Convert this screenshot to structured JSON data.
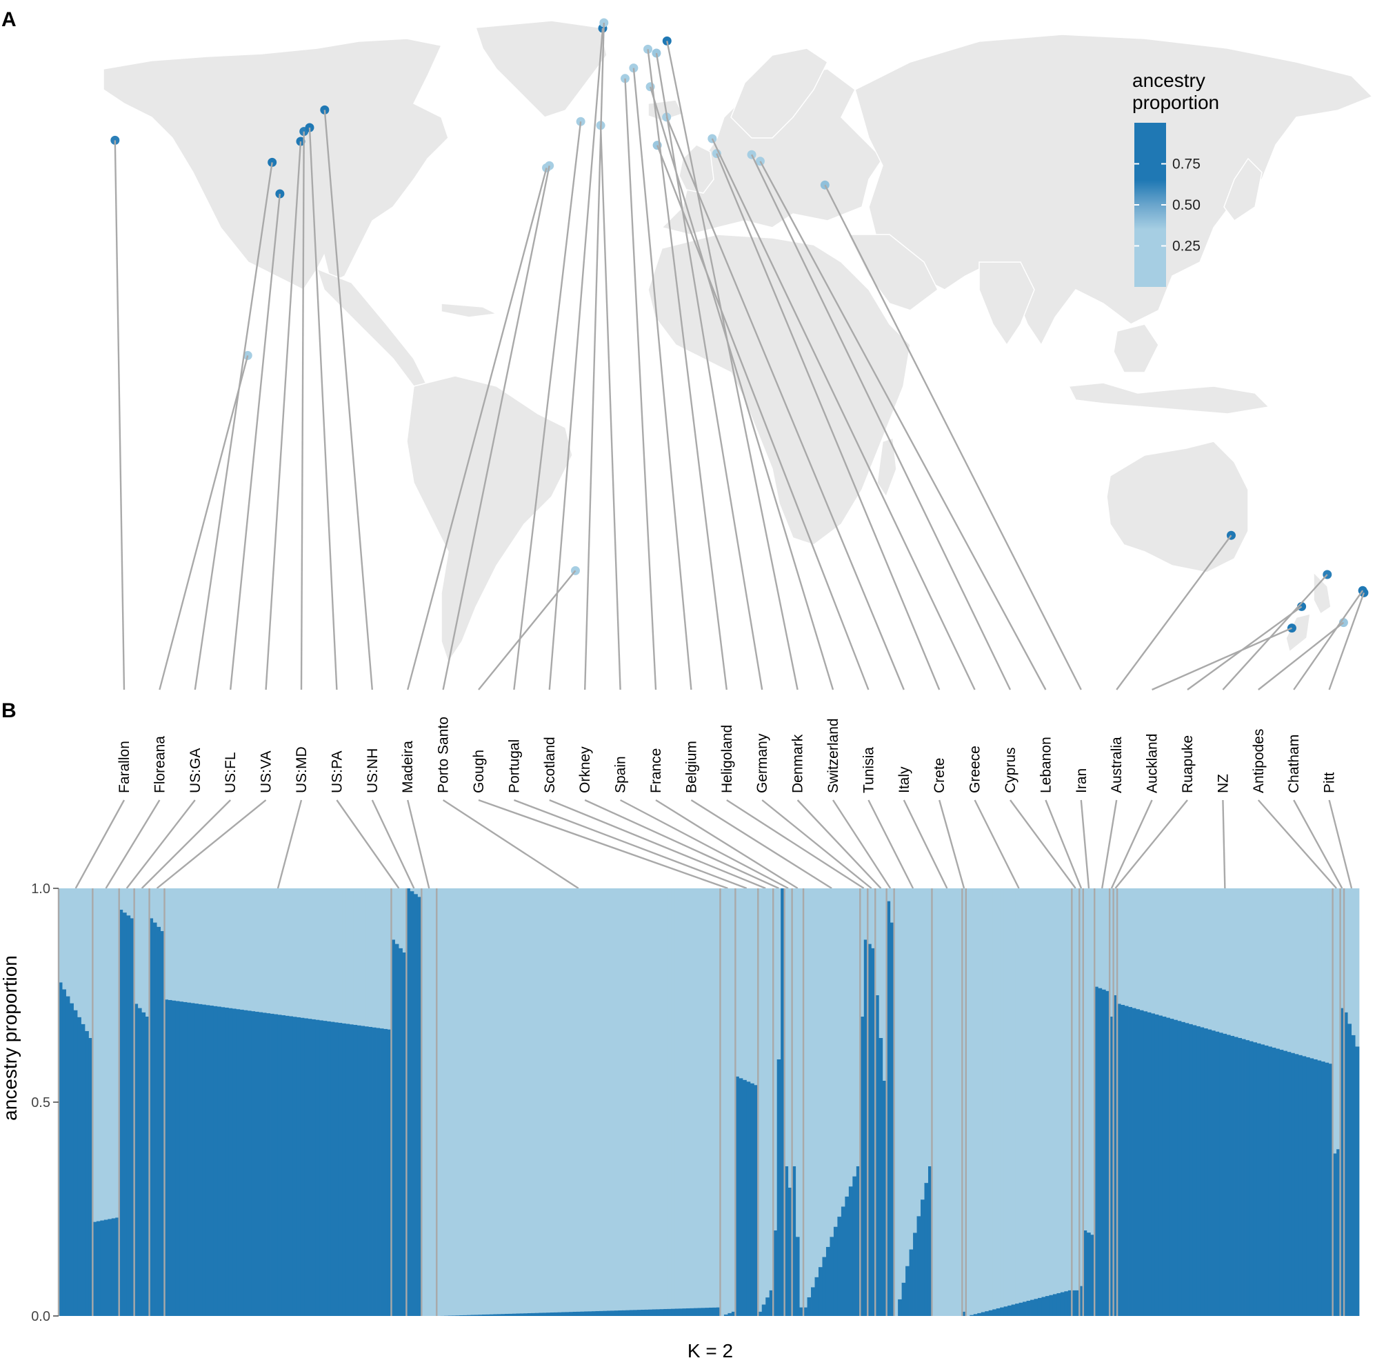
{
  "figure": {
    "panel_a_label": "A",
    "panel_b_label": "B",
    "legend": {
      "title_line1": "ancestry",
      "title_line2": "proportion",
      "ticks": [
        0.75,
        0.5,
        0.25
      ],
      "tick_labels": [
        "0.75",
        "0.50",
        "0.25"
      ],
      "color_low": "#a6cee3",
      "color_high": "#1f78b4"
    },
    "map_land_color": "#e8e8e8",
    "leader_line_color": "#a9a9a9"
  },
  "chart_data": {
    "type": "bar",
    "subtype": "stacked-admixture",
    "xlabel": "K = 2",
    "ylabel": "ancestry proportion",
    "ylim": [
      0,
      1
    ],
    "yticks": [
      0.0,
      0.5,
      1.0
    ],
    "ytick_labels": [
      "0.0",
      "0.5",
      "1.0"
    ],
    "series_colors": {
      "cluster1": "#1f78b4",
      "cluster2": "#a6cee3"
    },
    "populations": [
      {
        "name": "Farallon",
        "n": 9,
        "start": 0.78,
        "end": 0.65,
        "sample_site": {
          "lon": -123.0,
          "lat": 37.7
        },
        "site_value": 0.75
      },
      {
        "name": "Floreana",
        "n": 7,
        "start": 0.22,
        "end": 0.23,
        "sample_site": {
          "lon": -90.4,
          "lat": -1.3
        },
        "site_value": 0.2
      },
      {
        "name": "US:GA",
        "n": 4,
        "start": 0.95,
        "end": 0.93,
        "sample_site": {
          "lon": -84.4,
          "lat": 33.7
        },
        "site_value": 0.8
      },
      {
        "name": "US:FL",
        "n": 4,
        "start": 0.73,
        "end": 0.7,
        "sample_site": {
          "lon": -82.5,
          "lat": 28.0
        },
        "site_value": 0.8
      },
      {
        "name": "US:VA",
        "n": 4,
        "start": 0.93,
        "end": 0.9,
        "sample_site": {
          "lon": -77.4,
          "lat": 37.5
        },
        "site_value": 0.8
      },
      {
        "name": "US:MD",
        "n": 60,
        "start": 0.74,
        "end": 0.67,
        "sample_site": {
          "lon": -76.6,
          "lat": 39.3
        },
        "site_value": 0.75
      },
      {
        "name": "US:PA",
        "n": 4,
        "start": 0.88,
        "end": 0.85,
        "sample_site": {
          "lon": -75.2,
          "lat": 40.0
        },
        "site_value": 0.8
      },
      {
        "name": "US:NH",
        "n": 4,
        "start": 1.0,
        "end": 0.98,
        "sample_site": {
          "lon": -71.5,
          "lat": 43.2
        },
        "site_value": 0.95
      },
      {
        "name": "Madeira",
        "n": 4,
        "start": 0.0,
        "end": 0.0,
        "sample_site": {
          "lon": -17.0,
          "lat": 32.7
        },
        "site_value": 0.1
      },
      {
        "name": "Porto Santo",
        "n": 75,
        "start": 0.0,
        "end": 0.02,
        "sample_site": {
          "lon": -16.3,
          "lat": 33.1
        },
        "site_value": 0.1
      },
      {
        "name": "Gough",
        "n": 4,
        "start": 0.0,
        "end": 0.01,
        "sample_site": {
          "lon": -9.9,
          "lat": -40.3
        },
        "site_value": 0.2
      },
      {
        "name": "Portugal",
        "n": 6,
        "start": 0.56,
        "end": 0.54,
        "sample_site": {
          "lon": -8.6,
          "lat": 41.1
        },
        "site_value": 0.15
      },
      {
        "name": "Scotland",
        "n": 4,
        "start": 0.01,
        "end": 0.06,
        "sample_site": {
          "lon": -3.2,
          "lat": 58.0
        },
        "site_value": 0.8
      },
      {
        "name": "Orkney",
        "n": 3,
        "start": 0.2,
        "end": 1.0,
        "sample_site": {
          "lon": -2.9,
          "lat": 59.0
        },
        "site_value": 0.15
      },
      {
        "name": "Spain",
        "n": 2,
        "start": 0.35,
        "end": 0.3,
        "sample_site": {
          "lon": -3.7,
          "lat": 40.4
        },
        "site_value": 0.2
      },
      {
        "name": "France",
        "n": 3,
        "start": 0.35,
        "end": 0.02,
        "sample_site": {
          "lon": 2.3,
          "lat": 48.9
        },
        "site_value": 0.2
      },
      {
        "name": "Belgium",
        "n": 15,
        "start": 0.02,
        "end": 0.35,
        "sample_site": {
          "lon": 4.4,
          "lat": 50.8
        },
        "site_value": 0.2
      },
      {
        "name": "Heligoland",
        "n": 2,
        "start": 0.7,
        "end": 0.88,
        "sample_site": {
          "lon": 7.9,
          "lat": 54.2
        },
        "site_value": 0.15
      },
      {
        "name": "Germany",
        "n": 2,
        "start": 0.87,
        "end": 0.86,
        "sample_site": {
          "lon": 10.0,
          "lat": 53.5
        },
        "site_value": 0.25
      },
      {
        "name": "Denmark",
        "n": 3,
        "start": 0.75,
        "end": 0.55,
        "sample_site": {
          "lon": 12.6,
          "lat": 55.7
        },
        "site_value": 0.85
      },
      {
        "name": "Switzerland",
        "n": 2,
        "start": 0.97,
        "end": 0.92,
        "sample_site": {
          "lon": 8.5,
          "lat": 47.4
        },
        "site_value": 0.2
      },
      {
        "name": "Tunisia",
        "n": 10,
        "start": 0.0,
        "end": 0.35,
        "sample_site": {
          "lon": 10.2,
          "lat": 36.8
        },
        "site_value": 0.25
      },
      {
        "name": "Italy",
        "n": 8,
        "start": 0.0,
        "end": 0.0,
        "sample_site": {
          "lon": 12.5,
          "lat": 41.9
        },
        "site_value": 0.2
      },
      {
        "name": "Crete",
        "n": 1,
        "start": 0.01,
        "end": 0.01,
        "sample_site": {
          "lon": 24.8,
          "lat": 35.3
        },
        "site_value": 0.15
      },
      {
        "name": "Greece",
        "n": 28,
        "start": 0.0,
        "end": 0.06,
        "sample_site": {
          "lon": 23.7,
          "lat": 38.0
        },
        "site_value": 0.2
      },
      {
        "name": "Cyprus",
        "n": 2,
        "start": 0.06,
        "end": 0.06,
        "sample_site": {
          "lon": 33.4,
          "lat": 35.1
        },
        "site_value": 0.2
      },
      {
        "name": "Lebanon",
        "n": 1,
        "start": 0.07,
        "end": 0.07,
        "sample_site": {
          "lon": 35.5,
          "lat": 33.9
        },
        "site_value": 0.2
      },
      {
        "name": "Iran",
        "n": 3,
        "start": 0.2,
        "end": 0.19,
        "sample_site": {
          "lon": 51.4,
          "lat": 29.6
        },
        "site_value": 0.3
      },
      {
        "name": "Australia",
        "n": 4,
        "start": 0.77,
        "end": 0.76,
        "sample_site": {
          "lon": 151.2,
          "lat": -33.9
        },
        "site_value": 0.8
      },
      {
        "name": "Auckland",
        "n": 1,
        "start": 0.7,
        "end": 0.7,
        "sample_site": {
          "lon": 166.1,
          "lat": -50.7
        },
        "site_value": 0.8
      },
      {
        "name": "Ruapuke",
        "n": 1,
        "start": 0.75,
        "end": 0.75,
        "sample_site": {
          "lon": 168.5,
          "lat": -46.8
        },
        "site_value": 0.8
      },
      {
        "name": "NZ",
        "n": 57,
        "start": 0.73,
        "end": 0.59,
        "sample_site": {
          "lon": 174.8,
          "lat": -41.0
        },
        "site_value": 0.75
      },
      {
        "name": "Antipodes",
        "n": 2,
        "start": 0.38,
        "end": 0.39,
        "sample_site": {
          "lon": 178.8,
          "lat": -49.7
        },
        "site_value": 0.25
      },
      {
        "name": "Chatham",
        "n": 1,
        "start": 0.72,
        "end": 0.72,
        "sample_site": {
          "lon": -176.5,
          "lat": -43.9
        },
        "site_value": 0.8
      },
      {
        "name": "Pitt",
        "n": 4,
        "start": 0.71,
        "end": 0.63,
        "sample_site": {
          "lon": -176.2,
          "lat": -44.3
        },
        "site_value": 0.8
      }
    ]
  }
}
